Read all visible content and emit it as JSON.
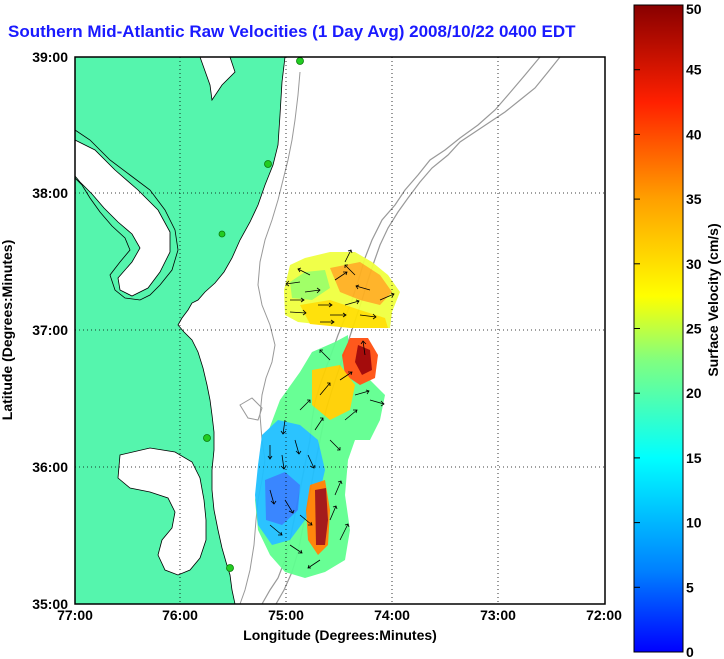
{
  "title": "Southern Mid-Atlantic Raw Velocities (1 Day Avg) 2008/10/22 0400 EDT",
  "x_axis": {
    "label": "Longitude (Degrees:Minutes)",
    "ticks": [
      "77:00",
      "76:00",
      "75:00",
      "74:00",
      "73:00",
      "72:00"
    ]
  },
  "y_axis": {
    "label": "Latitude (Degrees:Minutes)",
    "ticks": [
      "39:00",
      "38:00",
      "37:00",
      "36:00",
      "35:00"
    ]
  },
  "colorbar": {
    "label": "Surface Velocity (cm/s)",
    "ticks": [
      "50",
      "45",
      "40",
      "35",
      "30",
      "25",
      "20",
      "15",
      "10",
      "5",
      "0"
    ],
    "min": 0,
    "max": 50
  },
  "colors": {
    "land": "#55f5ad",
    "title": "#1a1aff",
    "contour": "#999999",
    "station": "#22cc22"
  },
  "grid": "dotted",
  "stations": [
    "station",
    "station",
    "station",
    "station",
    "station"
  ]
}
